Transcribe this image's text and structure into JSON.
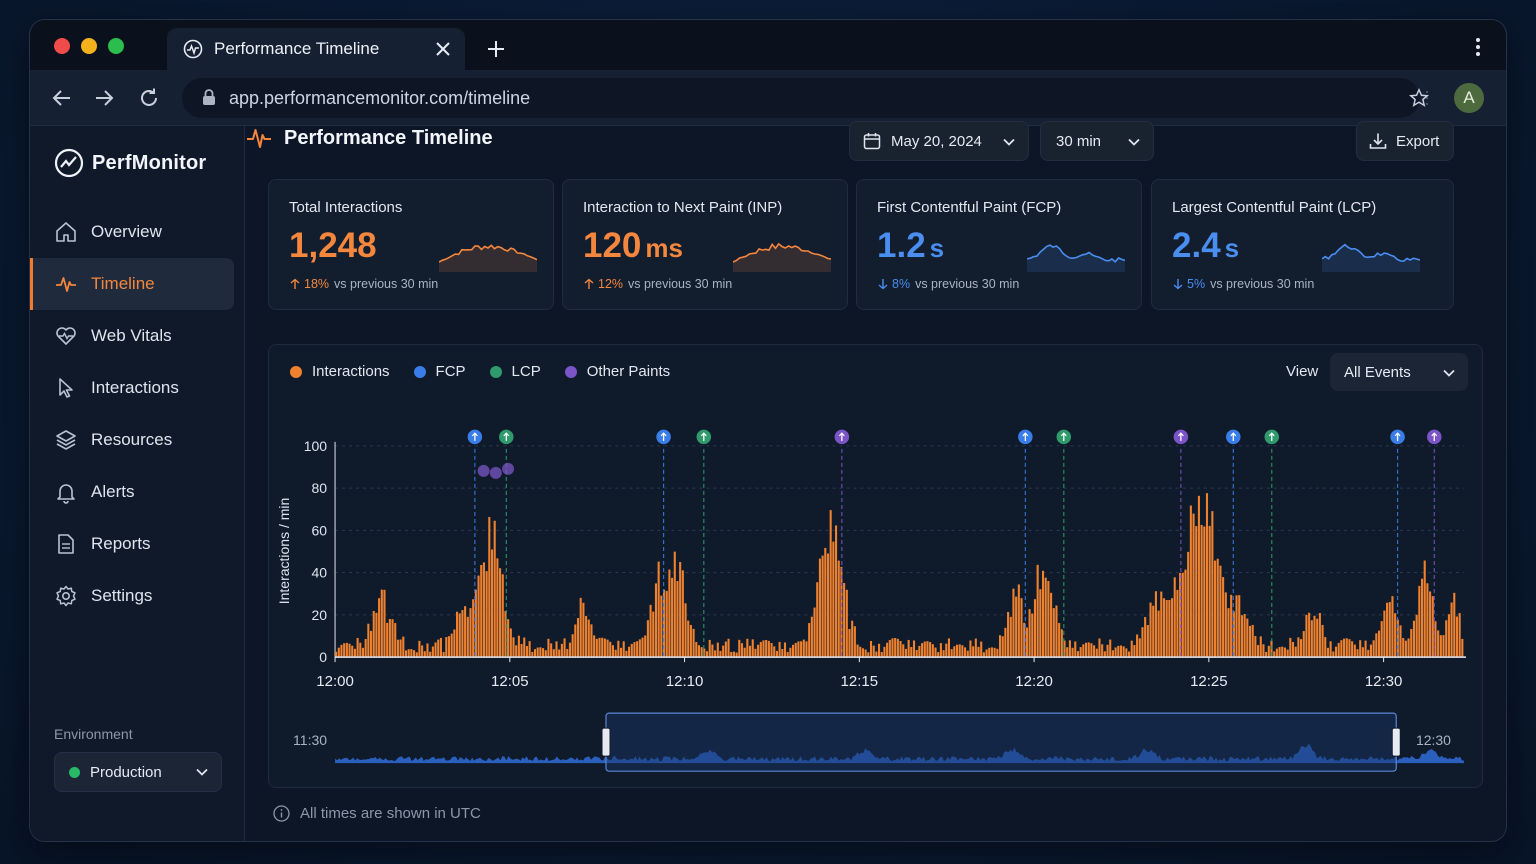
{
  "browser": {
    "tab_title": "Performance Timeline",
    "url": "app.performancemonitor.com/timeline",
    "avatar_letter": "A"
  },
  "sidebar": {
    "brand": "PerfMonitor",
    "items": [
      {
        "label": "Overview",
        "icon": "home-icon",
        "active": false
      },
      {
        "label": "Timeline",
        "icon": "pulse-icon",
        "active": true
      },
      {
        "label": "Web Vitals",
        "icon": "heart-pulse-icon",
        "active": false
      },
      {
        "label": "Interactions",
        "icon": "cursor-icon",
        "active": false
      },
      {
        "label": "Resources",
        "icon": "layers-icon",
        "active": false
      },
      {
        "label": "Alerts",
        "icon": "bell-icon",
        "active": false
      },
      {
        "label": "Reports",
        "icon": "document-icon",
        "active": false
      },
      {
        "label": "Settings",
        "icon": "gear-icon",
        "active": false
      }
    ],
    "environment_label": "Environment",
    "environment_value": "Production"
  },
  "header": {
    "title": "Performance Timeline",
    "date": "May 20, 2024",
    "range": "30 min",
    "export_label": "Export"
  },
  "cards": [
    {
      "title": "Total Interactions",
      "value": "1,248",
      "unit": "",
      "delta": "18%",
      "delta_dir": "up",
      "delta_text": "vs previous 30 min",
      "color": "#f4873d"
    },
    {
      "title": "Interaction to Next Paint (INP)",
      "value": "120",
      "unit": "ms",
      "delta": "12%",
      "delta_dir": "up",
      "delta_text": "vs previous 30 min",
      "color": "#f4873d"
    },
    {
      "title": "First Contentful Paint (FCP)",
      "value": "1.2",
      "unit": "s",
      "delta": "8%",
      "delta_dir": "down",
      "delta_text": "vs previous 30 min",
      "color": "#4a8ef0"
    },
    {
      "title": "Largest Contentful Paint (LCP)",
      "value": "2.4",
      "unit": "s",
      "delta": "5%",
      "delta_dir": "down",
      "delta_text": "vs previous 30 min",
      "color": "#4a8ef0"
    }
  ],
  "chart": {
    "legend": [
      {
        "label": "Interactions",
        "color": "#f0822f"
      },
      {
        "label": "FCP",
        "color": "#3b7de8"
      },
      {
        "label": "LCP",
        "color": "#2f9a6b"
      },
      {
        "label": "Other Paints",
        "color": "#7b55c7"
      }
    ],
    "view_label": "View",
    "view_value": "All Events",
    "range_start_label": "11:30",
    "range_end_label": "12:30"
  },
  "chart_data": {
    "type": "bar",
    "ylabel": "Interactions / min",
    "ylim": [
      0,
      100
    ],
    "yticks": [
      0,
      20,
      40,
      60,
      80,
      100
    ],
    "xlim_minutes": [
      0,
      32.3
    ],
    "xticks": [
      "12:00",
      "12:05",
      "12:10",
      "12:15",
      "12:20",
      "12:25",
      "12:30"
    ],
    "peaks": [
      {
        "t": 1.35,
        "h": 30,
        "w": 0.35
      },
      {
        "t": 3.65,
        "h": 22,
        "w": 0.25
      },
      {
        "t": 4.45,
        "h": 64,
        "w": 0.45
      },
      {
        "t": 7.1,
        "h": 22,
        "w": 0.3
      },
      {
        "t": 9.25,
        "h": 35,
        "w": 0.3
      },
      {
        "t": 9.8,
        "h": 47,
        "w": 0.35
      },
      {
        "t": 14.2,
        "h": 66,
        "w": 0.45
      },
      {
        "t": 19.5,
        "h": 32,
        "w": 0.3
      },
      {
        "t": 20.3,
        "h": 48,
        "w": 0.35
      },
      {
        "t": 23.5,
        "h": 28,
        "w": 0.35
      },
      {
        "t": 24.4,
        "h": 52,
        "w": 0.5
      },
      {
        "t": 25.0,
        "h": 72,
        "w": 0.45
      },
      {
        "t": 25.9,
        "h": 28,
        "w": 0.35
      },
      {
        "t": 28.0,
        "h": 22,
        "w": 0.3
      },
      {
        "t": 30.2,
        "h": 26,
        "w": 0.3
      },
      {
        "t": 31.2,
        "h": 45,
        "w": 0.3
      },
      {
        "t": 32.0,
        "h": 25,
        "w": 0.25
      }
    ],
    "base": 7,
    "event_markers": [
      {
        "t": 4.0,
        "type": "FCP"
      },
      {
        "t": 4.9,
        "type": "LCP"
      },
      {
        "t": 9.4,
        "type": "FCP"
      },
      {
        "t": 10.55,
        "type": "LCP"
      },
      {
        "t": 14.5,
        "type": "Other Paints"
      },
      {
        "t": 19.75,
        "type": "FCP"
      },
      {
        "t": 20.85,
        "type": "LCP"
      },
      {
        "t": 24.2,
        "type": "Other Paints"
      },
      {
        "t": 25.7,
        "type": "FCP"
      },
      {
        "t": 26.8,
        "type": "LCP"
      },
      {
        "t": 30.4,
        "type": "FCP"
      },
      {
        "t": 31.45,
        "type": "Other Paints"
      }
    ],
    "selection_window_fraction": [
      0.24,
      0.94
    ]
  },
  "footer": {
    "note": "All times are shown in UTC"
  }
}
